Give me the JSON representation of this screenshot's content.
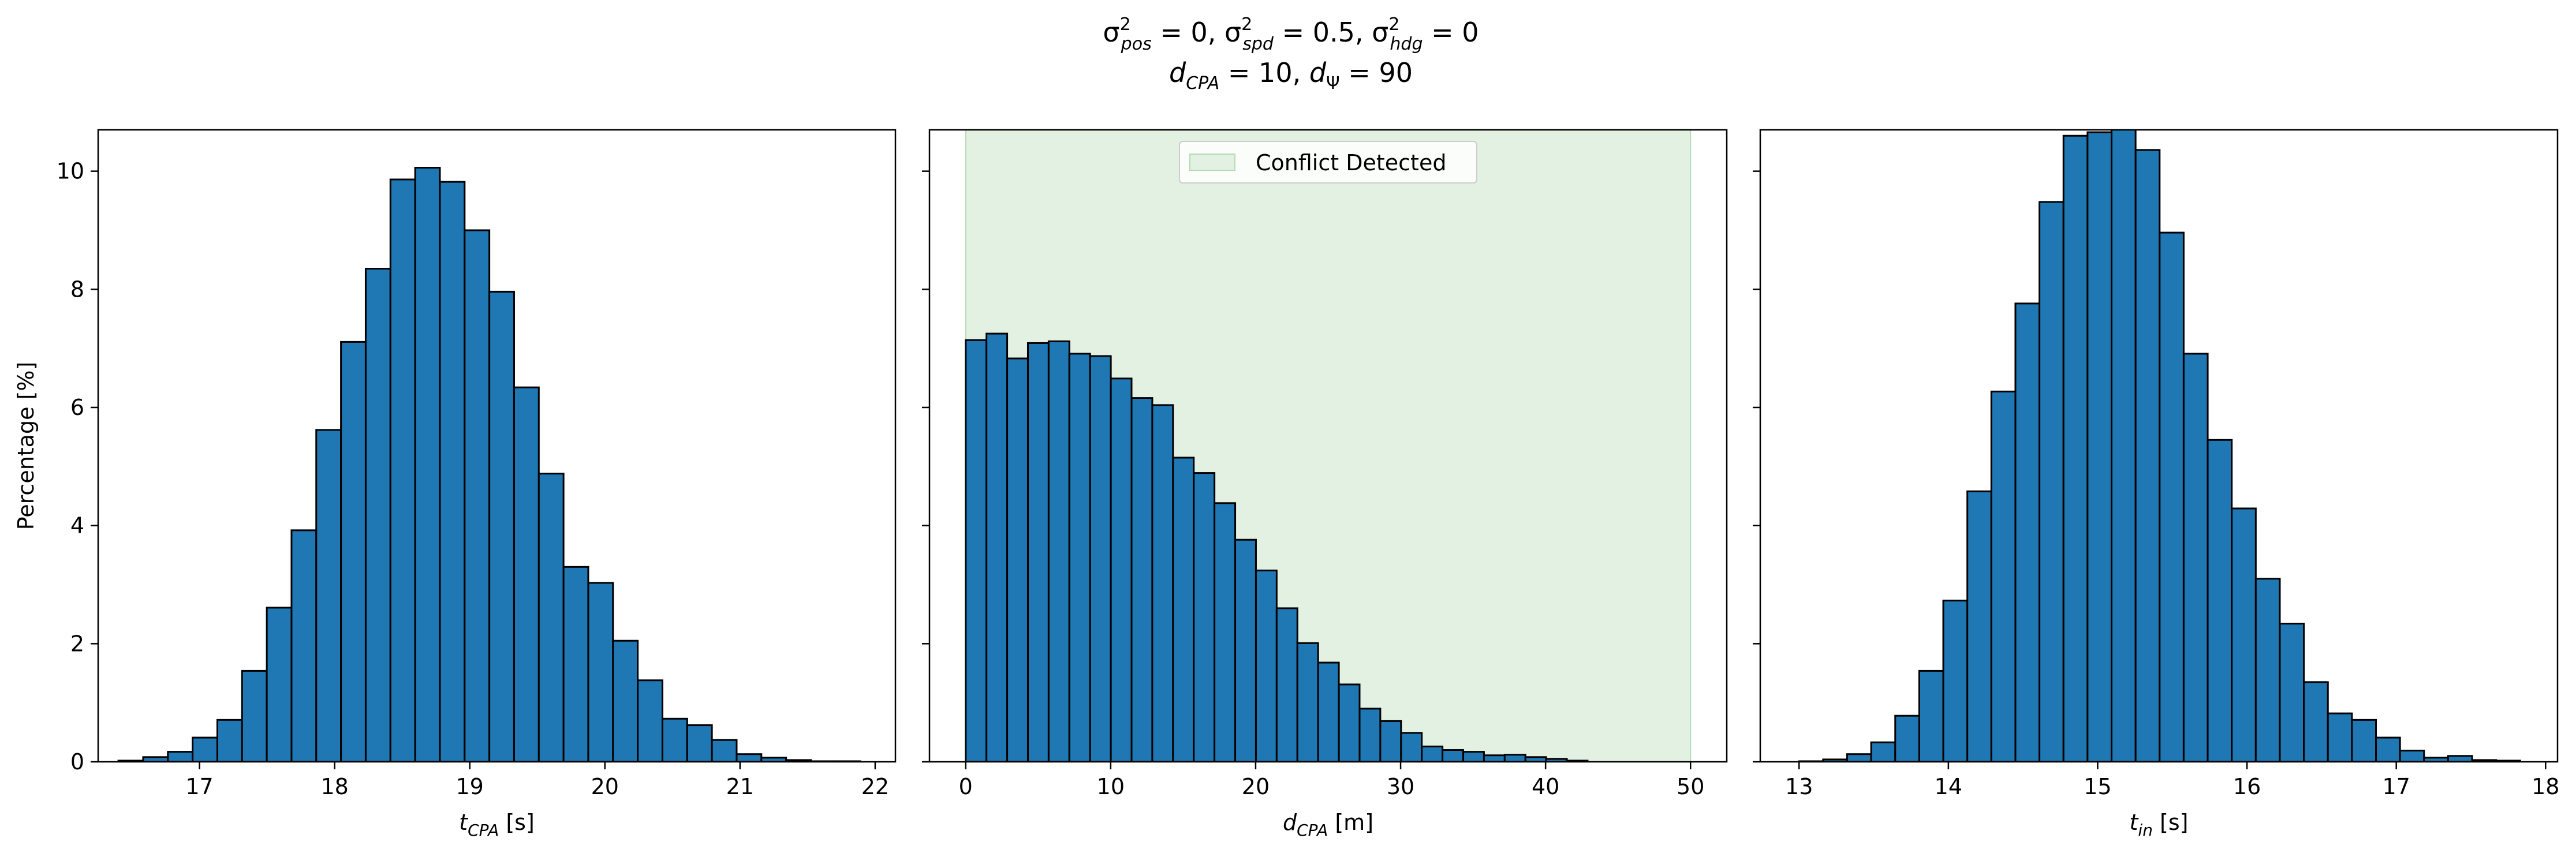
{
  "title": {
    "line1": "σ²pos = 0, σ²spd = 0.5, σ²hdg = 0",
    "line2": "dCPA = 10, dΨ = 90"
  },
  "colors": {
    "bar_fill": "#1f77b4",
    "bar_edge": "#000000",
    "conflict_fill": "#e3f1e3",
    "conflict_edge": "#b5dbb5"
  },
  "chart_data": [
    {
      "type": "bar",
      "histogram": true,
      "xlabel": "t_CPA [s]",
      "ylabel": "Percentage [%]",
      "xlim": [
        16.25,
        22.15
      ],
      "ylim": [
        0,
        10.7
      ],
      "xticks": [
        17,
        18,
        19,
        20,
        21,
        22
      ],
      "yticks": [
        0,
        2,
        4,
        6,
        8,
        10
      ],
      "bin_start": 16.4,
      "bin_width": 0.183,
      "values": [
        0.02,
        0.08,
        0.17,
        0.41,
        0.71,
        1.54,
        2.61,
        3.92,
        5.62,
        7.11,
        8.35,
        9.86,
        10.06,
        9.82,
        9.0,
        7.96,
        6.34,
        4.88,
        3.3,
        3.03,
        2.05,
        1.38,
        0.73,
        0.62,
        0.37,
        0.13,
        0.07,
        0.03,
        0.01,
        0.01
      ]
    },
    {
      "type": "bar",
      "histogram": true,
      "xlabel": "d_CPA [m]",
      "xlim": [
        -2.5,
        52.5
      ],
      "ylim": [
        0,
        10.7
      ],
      "xticks": [
        0,
        10,
        20,
        30,
        40,
        50
      ],
      "yticks": [
        0,
        2,
        4,
        6,
        8,
        10
      ],
      "bin_start": 0,
      "bin_width": 1.43,
      "values": [
        7.14,
        7.25,
        6.83,
        7.09,
        7.12,
        6.91,
        6.87,
        6.49,
        6.16,
        6.04,
        5.15,
        4.89,
        4.38,
        3.76,
        3.24,
        2.6,
        2.01,
        1.68,
        1.31,
        0.9,
        0.69,
        0.49,
        0.26,
        0.2,
        0.17,
        0.11,
        0.12,
        0.08,
        0.05,
        0.02
      ],
      "shaded_region": {
        "x": [
          0,
          50
        ],
        "label": "Conflict Detected"
      },
      "legend": {
        "entries": [
          "Conflict Detected"
        ],
        "position": "upper center"
      }
    },
    {
      "type": "bar",
      "histogram": true,
      "xlabel": "t_in [s]",
      "xlim": [
        12.74,
        18.08
      ],
      "ylim": [
        0,
        10.7
      ],
      "xticks": [
        13,
        14,
        15,
        16,
        17,
        18
      ],
      "yticks": [
        0,
        2,
        4,
        6,
        8,
        10
      ],
      "bin_start": 13.0,
      "bin_width": 0.161,
      "values": [
        0.01,
        0.04,
        0.13,
        0.33,
        0.78,
        1.54,
        2.73,
        4.58,
        6.27,
        7.76,
        9.48,
        10.6,
        10.66,
        10.76,
        10.36,
        8.96,
        6.91,
        5.45,
        4.29,
        3.1,
        2.34,
        1.35,
        0.82,
        0.71,
        0.41,
        0.19,
        0.07,
        0.1,
        0.03,
        0.02
      ]
    }
  ]
}
